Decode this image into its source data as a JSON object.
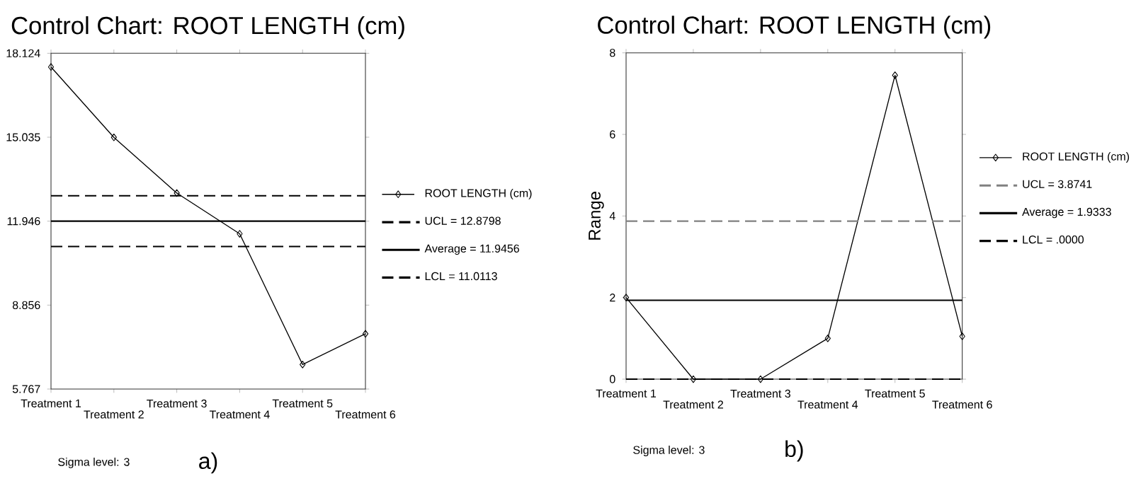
{
  "chart_data": [
    {
      "type": "line",
      "title": "Control Chart: ROOT LENGTH (cm)",
      "categories": [
        "Treatment 1",
        "Treatment 2",
        "Treatment 3",
        "Treatment 4",
        "Treatment 5",
        "Treatment 6"
      ],
      "series": [
        {
          "name": "ROOT LENGTH (cm)",
          "color": "#000000",
          "values": [
            17.62,
            15.03,
            12.98,
            11.48,
            6.67,
            7.8
          ]
        }
      ],
      "ylim": [
        5.767,
        18.124
      ],
      "yticks": [
        5.767,
        8.856,
        11.946,
        15.035,
        18.124
      ],
      "ref_lines": [
        {
          "axis": "y",
          "value": 12.8798,
          "label": "UCL = 12.8798",
          "color": "#000000",
          "line_style": "dashed"
        },
        {
          "axis": "y",
          "value": 11.9456,
          "label": "Average = 11.9456",
          "color": "#000000",
          "line_style": "solid"
        },
        {
          "axis": "y",
          "value": 11.0113,
          "label": "LCL = 11.0113",
          "color": "#000000",
          "line_style": "dashed"
        }
      ],
      "annotations": [
        "Sigma level: 3",
        "a)"
      ],
      "marker": "diamond",
      "line_style": "solid",
      "legend": "right",
      "grid": false
    },
    {
      "type": "line",
      "title": "Control Chart: ROOT LENGTH (cm)",
      "ylabel": "Range",
      "categories": [
        "Treatment 1",
        "Treatment 2",
        "Treatment 3",
        "Treatment 4",
        "Treatment 5",
        "Treatment 6"
      ],
      "series": [
        {
          "name": "ROOT LENGTH (cm)",
          "color": "#000000",
          "values": [
            2.0,
            0.0,
            0.0,
            1.0,
            7.45,
            1.05
          ]
        }
      ],
      "ylim": [
        0,
        8
      ],
      "yticks": [
        0,
        2,
        4,
        6,
        8
      ],
      "ref_lines": [
        {
          "axis": "y",
          "value": 3.8741,
          "label": "UCL = 3.8741",
          "color": "#808080",
          "line_style": "dashed"
        },
        {
          "axis": "y",
          "value": 1.9333,
          "label": "Average = 1.9333",
          "color": "#000000",
          "line_style": "solid"
        },
        {
          "axis": "y",
          "value": 0.0,
          "label": "LCL = .0000",
          "color": "#000000",
          "line_style": "dashed"
        }
      ],
      "annotations": [
        "Sigma level: 3",
        "b)"
      ],
      "marker": "diamond",
      "line_style": "solid",
      "legend": "right",
      "grid": false
    }
  ]
}
